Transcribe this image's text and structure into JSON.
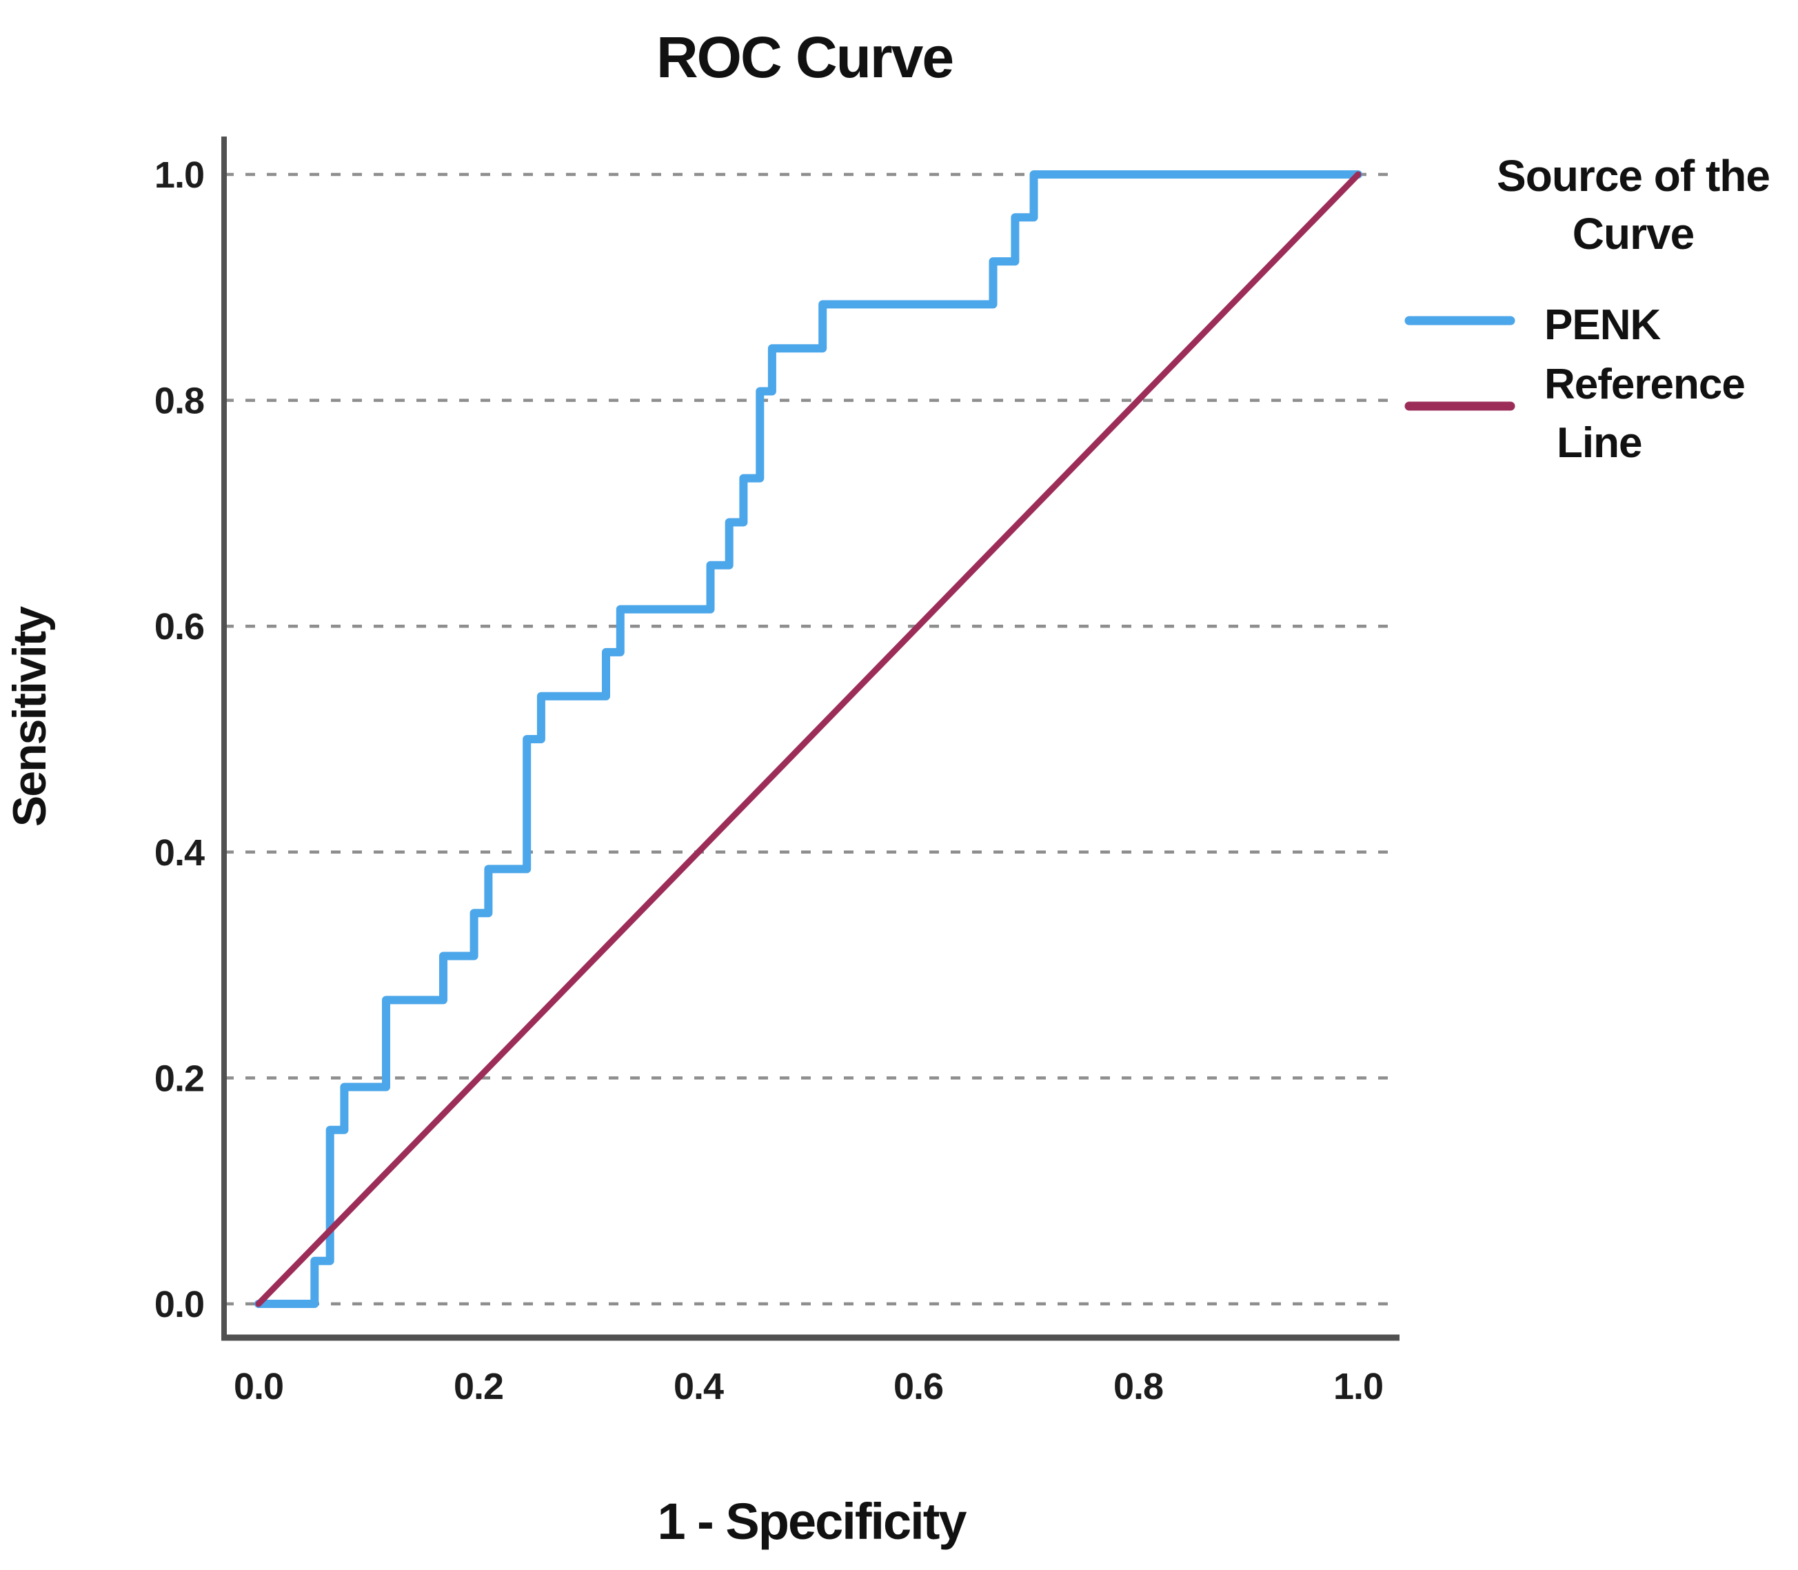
{
  "title": "ROC Curve",
  "axes": {
    "x": {
      "label": "1 - Specificity",
      "tick_labels": [
        "0.0",
        "0.2",
        "0.4",
        "0.6",
        "0.8",
        "1.0"
      ],
      "tick_values": [
        0,
        0.2,
        0.4,
        0.6,
        0.8,
        1.0
      ],
      "range": [
        0,
        1
      ]
    },
    "y": {
      "label": "Sensitivity",
      "tick_labels": [
        "0.0",
        "0.2",
        "0.4",
        "0.6",
        "0.8",
        "1.0"
      ],
      "tick_values": [
        0,
        0.2,
        0.4,
        0.6,
        0.8,
        1.0
      ],
      "range": [
        0,
        1
      ]
    }
  },
  "legend": {
    "title_lines": [
      "Source of the",
      "Curve"
    ],
    "items": [
      {
        "label": "PENK",
        "lines": [
          "PENK"
        ],
        "color": "#4BA6EA"
      },
      {
        "label": "Reference Line",
        "lines": [
          "Reference",
          "Line"
        ],
        "color": "#9C2D58"
      }
    ]
  },
  "colors": {
    "penk_curve": "#4BA6EA",
    "reference_line": "#9C2D58",
    "gridline": "#8e8e8e",
    "axis": "#515151",
    "text": "#111111",
    "background": "#ffffff"
  },
  "chart_data": {
    "type": "line",
    "title": "ROC Curve",
    "xlabel": "1 - Specificity",
    "ylabel": "Sensitivity",
    "xlim": [
      0,
      1
    ],
    "ylim": [
      0,
      1
    ],
    "grid": "horizontal dashed at 0.0, 0.2, 0.4, 0.6, 0.8, 1.0",
    "legend_position": "right",
    "legend_title": "Source of the Curve",
    "series": [
      {
        "name": "PENK",
        "style": "step",
        "color": "#4BA6EA",
        "points": [
          [
            0,
            0
          ],
          [
            0.051,
            0
          ],
          [
            0.051,
            0.038
          ],
          [
            0.065,
            0.038
          ],
          [
            0.065,
            0.154
          ],
          [
            0.078,
            0.154
          ],
          [
            0.078,
            0.192
          ],
          [
            0.116,
            0.192
          ],
          [
            0.116,
            0.269
          ],
          [
            0.168,
            0.269
          ],
          [
            0.168,
            0.308
          ],
          [
            0.196,
            0.308
          ],
          [
            0.196,
            0.346
          ],
          [
            0.209,
            0.346
          ],
          [
            0.209,
            0.385
          ],
          [
            0.244,
            0.385
          ],
          [
            0.244,
            0.5
          ],
          [
            0.257,
            0.5
          ],
          [
            0.257,
            0.538
          ],
          [
            0.316,
            0.538
          ],
          [
            0.316,
            0.577
          ],
          [
            0.329,
            0.577
          ],
          [
            0.329,
            0.615
          ],
          [
            0.411,
            0.615
          ],
          [
            0.411,
            0.654
          ],
          [
            0.428,
            0.654
          ],
          [
            0.428,
            0.692
          ],
          [
            0.441,
            0.692
          ],
          [
            0.441,
            0.731
          ],
          [
            0.456,
            0.731
          ],
          [
            0.456,
            0.808
          ],
          [
            0.467,
            0.808
          ],
          [
            0.467,
            0.846
          ],
          [
            0.513,
            0.846
          ],
          [
            0.513,
            0.885
          ],
          [
            0.668,
            0.885
          ],
          [
            0.668,
            0.923
          ],
          [
            0.688,
            0.923
          ],
          [
            0.688,
            0.962
          ],
          [
            0.705,
            0.962
          ],
          [
            0.705,
            1.0
          ],
          [
            1.0,
            1.0
          ]
        ]
      },
      {
        "name": "Reference Line",
        "style": "straight",
        "color": "#9C2D58",
        "points": [
          [
            0,
            0
          ],
          [
            1,
            1
          ]
        ]
      }
    ]
  }
}
